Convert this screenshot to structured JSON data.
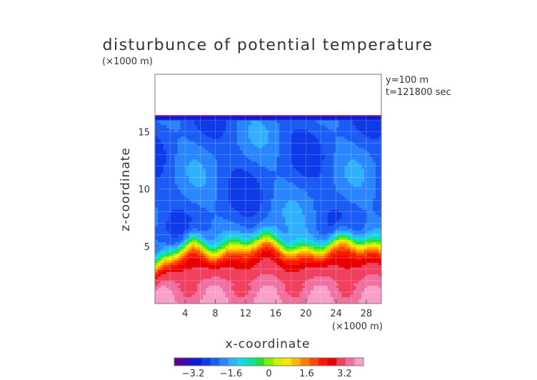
{
  "chart_data": {
    "type": "heatmap",
    "title": "disturbunce of potential temperature",
    "unit_label": "(×1000 m)",
    "annotation_y": "y=100 m",
    "annotation_t": "t=121800 sec",
    "xlabel": "x-coordinate",
    "ylabel": "z-coordinate",
    "xlim": [
      0,
      30
    ],
    "ylim": [
      0,
      20
    ],
    "x_ticks": [
      {
        "value": 4,
        "label": "4"
      },
      {
        "value": 8,
        "label": "8"
      },
      {
        "value": 12,
        "label": "12"
      },
      {
        "value": 16,
        "label": "16"
      },
      {
        "value": 20,
        "label": "20"
      },
      {
        "value": 24,
        "label": "24"
      },
      {
        "value": 28,
        "label": "28"
      }
    ],
    "y_ticks": [
      {
        "value": 5,
        "label": "5"
      },
      {
        "value": 10,
        "label": "10"
      },
      {
        "value": 15,
        "label": "15"
      }
    ],
    "top_of_field_km": 16.4,
    "colorbar": {
      "range": [
        -4,
        4
      ],
      "ticks": [
        {
          "value": -3.2,
          "label": "−3.2"
        },
        {
          "value": -1.6,
          "label": "−1.6"
        },
        {
          "value": 0,
          "label": "0"
        },
        {
          "value": 1.6,
          "label": "1.6"
        },
        {
          "value": 3.2,
          "label": "3.2"
        }
      ],
      "colors": [
        "#5a0090",
        "#2a10c0",
        "#0a1cd8",
        "#0f3ae8",
        "#1a5cf4",
        "#2a86ff",
        "#30b0ff",
        "#18d8e8",
        "#10e0a0",
        "#20e040",
        "#80f000",
        "#d0f000",
        "#ffe800",
        "#ffb800",
        "#ff8000",
        "#ff4800",
        "#ff1800",
        "#e80000",
        "#f04060",
        "#f070a0",
        "#f8a0c8"
      ]
    }
  }
}
